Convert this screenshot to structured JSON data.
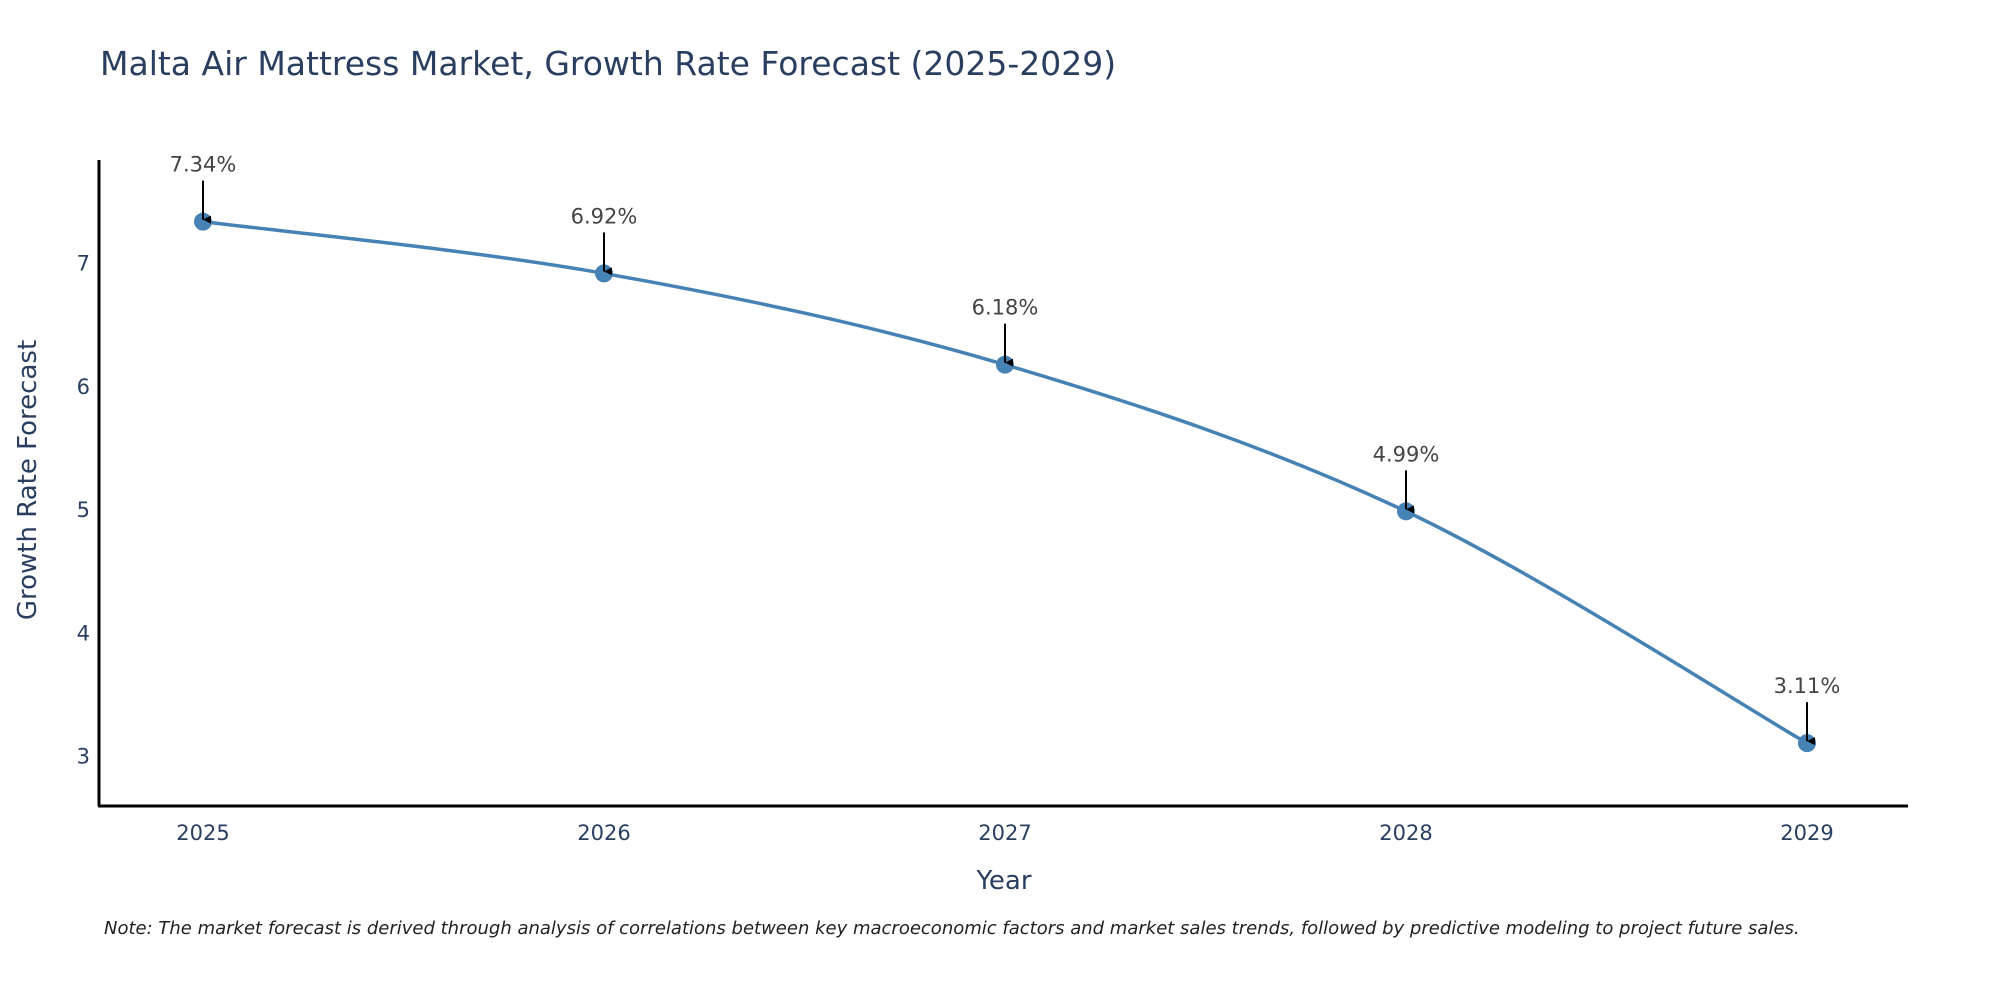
{
  "chart_data": {
    "type": "line",
    "title": "Malta Air Mattress Market, Growth Rate Forecast (2025-2029)",
    "xlabel": "Year",
    "ylabel": "Growth Rate Forecast",
    "categories": [
      "2025",
      "2026",
      "2027",
      "2028",
      "2029"
    ],
    "values": [
      7.34,
      6.92,
      6.18,
      4.99,
      3.11
    ],
    "data_labels": [
      "7.34%",
      "6.92%",
      "6.18%",
      "4.99%",
      "3.11%"
    ],
    "y_ticks": [
      "3",
      "4",
      "5",
      "6",
      "7"
    ],
    "ylim": [
      2.6,
      7.84
    ],
    "grid": false,
    "line_color": "#4682b4",
    "note": "Note: The market forecast is derived through analysis of correlations between key macroeconomic factors and market sales trends, followed by predictive modeling to project future sales."
  }
}
